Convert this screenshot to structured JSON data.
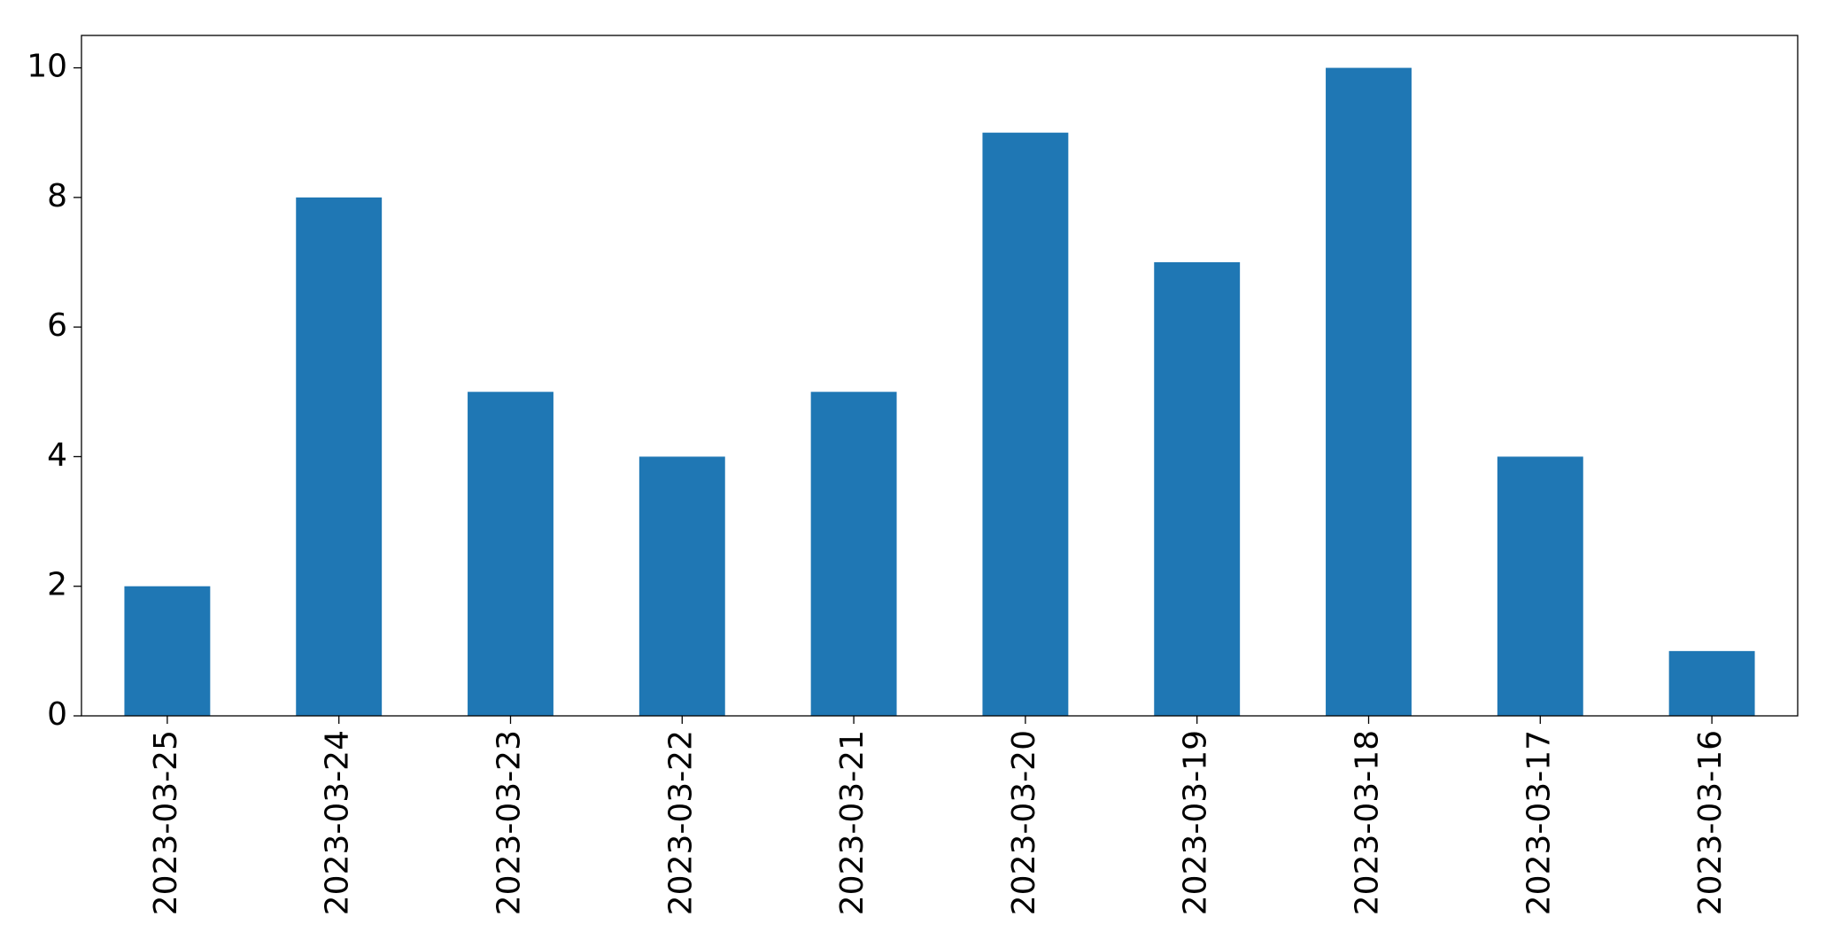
{
  "chart_data": {
    "type": "bar",
    "categories": [
      "2023-03-25",
      "2023-03-24",
      "2023-03-23",
      "2023-03-22",
      "2023-03-21",
      "2023-03-20",
      "2023-03-19",
      "2023-03-18",
      "2023-03-17",
      "2023-03-16"
    ],
    "values": [
      2,
      8,
      5,
      4,
      5,
      9,
      7,
      10,
      4,
      1
    ],
    "color": "#1f77b4",
    "ylim": [
      0,
      10.5
    ],
    "yticks": [
      0,
      2,
      4,
      6,
      8,
      10
    ],
    "grid": false
  }
}
